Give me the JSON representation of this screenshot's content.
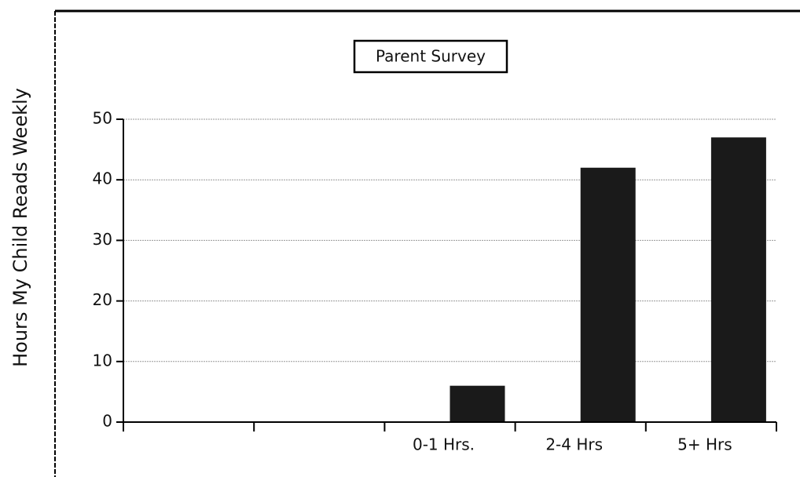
{
  "chart_data": {
    "type": "bar",
    "title": "Parent Survey",
    "y_label": "Hours My Child Reads Weekly",
    "categories": [
      null,
      null,
      "0-1 Hrs.",
      "2-4 Hrs",
      "5+ Hrs"
    ],
    "values": [
      null,
      null,
      6,
      42,
      47
    ],
    "color": "#1a1a1a",
    "ylim": [
      0,
      50
    ],
    "yticks": [
      0,
      10,
      20,
      30,
      40,
      50
    ],
    "grid": true
  }
}
